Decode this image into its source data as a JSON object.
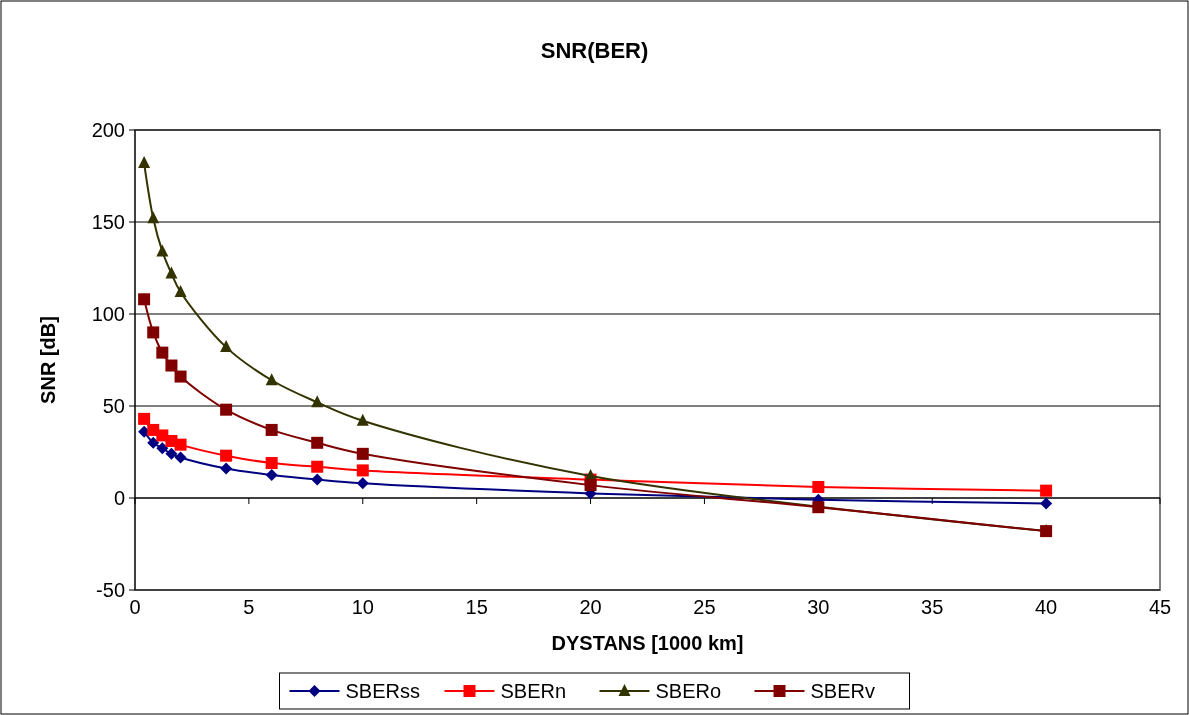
{
  "chart_data": {
    "type": "line",
    "title": "SNR(BER)",
    "xlabel": "DYSTANS [1000 km]",
    "ylabel": "SNR [dB]",
    "x": [
      0.4,
      0.8,
      1.2,
      1.6,
      2,
      4,
      6,
      8,
      10,
      20,
      30,
      40
    ],
    "series": [
      {
        "name": "SBERss",
        "color": "#000080",
        "marker": "diamond",
        "values": [
          36,
          30,
          27,
          24,
          22,
          16,
          12.5,
          10,
          8,
          2.5,
          -1,
          -3
        ]
      },
      {
        "name": "SBERn",
        "color": "#ff0000",
        "marker": "square",
        "values": [
          43,
          37,
          34,
          31,
          29,
          23,
          19,
          17,
          15,
          10,
          6,
          4
        ]
      },
      {
        "name": "SBERo",
        "color": "#333300",
        "marker": "triangle",
        "values": [
          182,
          152,
          134,
          122,
          112,
          82,
          64,
          52,
          42,
          12,
          null,
          -18
        ]
      },
      {
        "name": "SBERv",
        "color": "#800000",
        "marker": "square",
        "values": [
          108,
          90,
          79,
          72,
          66,
          48,
          37,
          30,
          24,
          7,
          -5,
          -18
        ]
      }
    ],
    "xlim": [
      0,
      45
    ],
    "xticks": [
      0,
      5,
      10,
      15,
      20,
      25,
      30,
      35,
      40,
      45
    ],
    "ylim": [
      -50,
      200
    ],
    "yticks": [
      -50,
      0,
      50,
      100,
      150,
      200
    ],
    "grid": "y",
    "legend": "bottom"
  }
}
